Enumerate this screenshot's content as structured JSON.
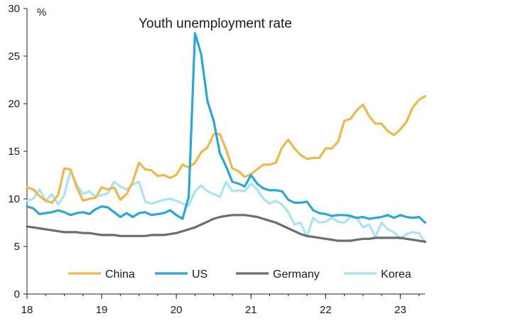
{
  "chart_data": {
    "type": "line",
    "title": "Youth unemployment rate",
    "ylabel": "%",
    "xlabel": "",
    "ylim": [
      0,
      30
    ],
    "y_ticks": [
      0,
      5,
      10,
      15,
      20,
      25,
      30
    ],
    "x_ticks": [
      {
        "label": "18",
        "value": 2018.0
      },
      {
        "label": "19",
        "value": 2019.0
      },
      {
        "label": "20",
        "value": 2020.0
      },
      {
        "label": "21",
        "value": 2021.0
      },
      {
        "label": "22",
        "value": 2022.0
      },
      {
        "label": "23",
        "value": 2023.0
      }
    ],
    "xlim": [
      2018.0,
      2023.33
    ],
    "x_unit": "year (fractional, monthly)",
    "legend_position": "bottom",
    "grid": false,
    "series": [
      {
        "name": "China",
        "color": "#f0b84a",
        "start": 2018.0,
        "step": 0.08333,
        "values": [
          11.2,
          11.0,
          10.3,
          9.8,
          9.6,
          10.4,
          13.2,
          13.1,
          11.2,
          9.8,
          10.0,
          10.1,
          11.2,
          11.0,
          11.2,
          9.9,
          10.5,
          11.8,
          13.8,
          13.1,
          13.0,
          12.4,
          12.5,
          12.2,
          12.5,
          13.6,
          13.3,
          13.8,
          14.9,
          15.4,
          16.8,
          16.8,
          15.2,
          13.2,
          12.9,
          12.3,
          12.6,
          13.1,
          13.6,
          13.6,
          13.8,
          15.4,
          16.2,
          15.3,
          14.6,
          14.2,
          14.3,
          14.3,
          15.3,
          15.3,
          16.0,
          18.2,
          18.4,
          19.3,
          19.9,
          18.7,
          17.9,
          17.9,
          17.1,
          16.7,
          17.3,
          18.1,
          19.6,
          20.4,
          20.8
        ]
      },
      {
        "name": "US",
        "color": "#27a8d8",
        "start": 2018.0,
        "step": 0.08333,
        "values": [
          9.2,
          9.0,
          8.4,
          8.5,
          8.6,
          8.8,
          8.6,
          8.3,
          8.5,
          8.6,
          8.4,
          8.9,
          9.2,
          9.1,
          8.6,
          8.1,
          8.5,
          8.1,
          8.5,
          8.6,
          8.3,
          8.4,
          8.5,
          8.8,
          8.3,
          7.9,
          10.2,
          27.4,
          25.2,
          20.3,
          18.2,
          14.8,
          13.4,
          11.8,
          11.6,
          11.3,
          12.5,
          11.6,
          11.1,
          10.9,
          10.9,
          10.8,
          9.9,
          9.6,
          9.6,
          9.7,
          8.8,
          8.5,
          8.4,
          8.2,
          8.3,
          8.3,
          8.2,
          8.0,
          8.1,
          7.9,
          8.0,
          8.1,
          8.3,
          8.0,
          8.3,
          8.1,
          8.0,
          8.1,
          7.5
        ]
      },
      {
        "name": "Germany",
        "color": "#6d6d6d",
        "start": 2018.0,
        "step": 0.08333,
        "values": [
          7.1,
          7.0,
          6.9,
          6.8,
          6.7,
          6.6,
          6.5,
          6.5,
          6.5,
          6.4,
          6.4,
          6.3,
          6.2,
          6.2,
          6.2,
          6.1,
          6.1,
          6.1,
          6.1,
          6.1,
          6.2,
          6.2,
          6.2,
          6.3,
          6.4,
          6.6,
          6.8,
          7.0,
          7.3,
          7.6,
          7.9,
          8.1,
          8.2,
          8.3,
          8.3,
          8.3,
          8.2,
          8.1,
          7.9,
          7.7,
          7.5,
          7.2,
          6.9,
          6.6,
          6.3,
          6.1,
          6.0,
          5.9,
          5.8,
          5.7,
          5.6,
          5.6,
          5.6,
          5.7,
          5.8,
          5.8,
          5.9,
          5.9,
          5.9,
          5.9,
          5.9,
          5.8,
          5.7,
          5.6,
          5.5
        ]
      },
      {
        "name": "Korea",
        "color": "#a8e4f3",
        "start": 2018.0,
        "step": 0.08333,
        "values": [
          9.8,
          10.0,
          11.0,
          9.8,
          10.5,
          9.4,
          10.4,
          13.0,
          11.5,
          10.5,
          10.8,
          10.2,
          10.4,
          10.6,
          11.8,
          11.3,
          11.0,
          11.5,
          11.8,
          9.7,
          9.5,
          9.7,
          9.9,
          10.0,
          9.8,
          9.5,
          9.3,
          10.8,
          11.4,
          10.8,
          10.5,
          10.2,
          11.8,
          10.8,
          10.9,
          10.8,
          11.6,
          11.0,
          10.0,
          9.5,
          9.8,
          9.4,
          8.6,
          7.3,
          7.5,
          6.0,
          8.0,
          7.5,
          7.6,
          8.0,
          7.6,
          7.5,
          8.1,
          8.0,
          7.0,
          7.3,
          6.0,
          7.5,
          6.8,
          6.5,
          5.8,
          6.3,
          6.5,
          6.4,
          5.4
        ]
      }
    ]
  }
}
